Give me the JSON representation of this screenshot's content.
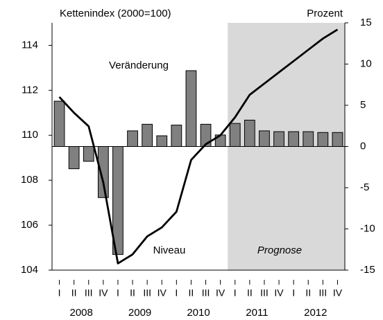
{
  "chart_data": {
    "type": "bar-line",
    "ylabel": "Kettenindex (2000=100)",
    "y2label": "Prozent",
    "categories": [
      "I",
      "II",
      "III",
      "IV",
      "I",
      "II",
      "III",
      "IV",
      "I",
      "II",
      "III",
      "IV",
      "I",
      "II",
      "III",
      "IV",
      "I",
      "II",
      "III",
      "IV"
    ],
    "years": [
      "2008",
      "2009",
      "2010",
      "2011",
      "2012"
    ],
    "ylim": [
      104,
      115
    ],
    "yticks": [
      104,
      106,
      108,
      110,
      112,
      114
    ],
    "y2lim": [
      -15,
      15
    ],
    "y2ticks": [
      -15,
      -10,
      -5,
      0,
      5,
      10,
      15
    ],
    "shaded_from": 12,
    "shade_color": "#d9d9d9",
    "annotations": [
      "Veränderung",
      "Niveau",
      "Prognose"
    ],
    "series": [
      {
        "name": "Veränderung",
        "type": "bar",
        "axis": "y2",
        "color": "#808080",
        "values": [
          5.5,
          -2.7,
          -1.8,
          -6.2,
          -13.1,
          1.9,
          2.7,
          1.3,
          2.6,
          9.2,
          2.7,
          1.4,
          2.8,
          3.2,
          1.9,
          1.8,
          1.8,
          1.8,
          1.7,
          1.7
        ]
      },
      {
        "name": "Niveau",
        "type": "line",
        "axis": "y",
        "color": "#000000",
        "values": [
          111.7,
          111.0,
          110.4,
          107.9,
          104.3,
          104.7,
          105.5,
          105.9,
          106.6,
          108.9,
          109.6,
          110.0,
          110.8,
          111.8,
          112.3,
          112.8,
          113.3,
          113.8,
          114.3,
          114.7
        ]
      }
    ]
  }
}
